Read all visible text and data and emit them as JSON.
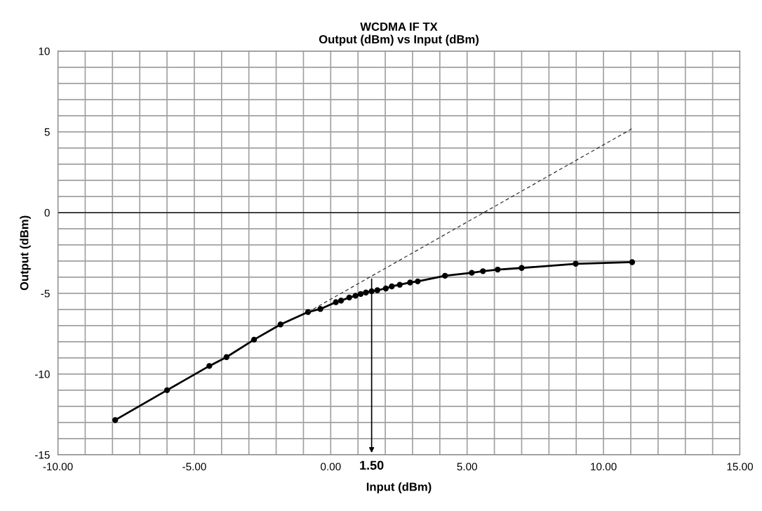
{
  "chart_data": {
    "type": "line",
    "title": "WCDMA IF TX\nOutput (dBm) vs Input (dBm)",
    "xlabel": "Input (dBm)",
    "ylabel": "Output (dBm)",
    "series": [
      {
        "color": "#000000",
        "marker": "circle",
        "line_style": "solid",
        "x": [
          -7.9,
          -6.0,
          -4.45,
          -3.82,
          -2.81,
          -1.84,
          -0.83,
          -0.38,
          0.19,
          0.38,
          0.68,
          0.91,
          1.1,
          1.29,
          1.5,
          1.71,
          2.02,
          2.24,
          2.53,
          2.91,
          3.19,
          4.19,
          5.17,
          5.58,
          6.12,
          7.0,
          8.98,
          11.05
        ],
        "values": [
          -12.85,
          -11.0,
          -9.5,
          -8.95,
          -7.87,
          -6.93,
          -6.16,
          -5.97,
          -5.55,
          -5.45,
          -5.26,
          -5.15,
          -5.04,
          -4.95,
          -4.87,
          -4.81,
          -4.7,
          -4.57,
          -4.47,
          -4.33,
          -4.26,
          -3.91,
          -3.73,
          -3.63,
          -3.53,
          -3.43,
          -3.17,
          -3.07
        ]
      },
      {
        "color": "#333333",
        "marker": "none",
        "line_style": "dashed",
        "x": [
          -0.83,
          11.05
        ],
        "values": [
          -6.16,
          5.2
        ]
      }
    ],
    "annotations": [
      {
        "text": "1.50",
        "x": 1.5,
        "y": -4.0
      }
    ],
    "ref_lines": [
      {
        "axis": "y",
        "value": 0,
        "color": "#000000",
        "line_style": "solid"
      }
    ],
    "xlim": [
      -10,
      15
    ],
    "ylim": [
      -15,
      10
    ],
    "xticks": [
      {
        "value": -10,
        "label": "-10.00"
      },
      {
        "value": -9,
        "label": null
      },
      {
        "value": -8,
        "label": null
      },
      {
        "value": -7,
        "label": null
      },
      {
        "value": -6,
        "label": null
      },
      {
        "value": -5,
        "label": "-5.00"
      },
      {
        "value": -4,
        "label": null
      },
      {
        "value": -3,
        "label": null
      },
      {
        "value": -2,
        "label": null
      },
      {
        "value": -1,
        "label": null
      },
      {
        "value": 0,
        "label": "0.00"
      },
      {
        "value": 1,
        "label": null
      },
      {
        "value": 2,
        "label": null
      },
      {
        "value": 3,
        "label": null
      },
      {
        "value": 4,
        "label": null
      },
      {
        "value": 5,
        "label": "5.00"
      },
      {
        "value": 6,
        "label": null
      },
      {
        "value": 7,
        "label": null
      },
      {
        "value": 8,
        "label": null
      },
      {
        "value": 9,
        "label": null
      },
      {
        "value": 10,
        "label": "10.00"
      },
      {
        "value": 11,
        "label": null
      },
      {
        "value": 12,
        "label": null
      },
      {
        "value": 13,
        "label": null
      },
      {
        "value": 14,
        "label": null
      },
      {
        "value": 15,
        "label": "15.00"
      }
    ],
    "yticks": [
      -15,
      {
        "value": -14,
        "label": null
      },
      {
        "value": -13,
        "label": null
      },
      {
        "value": -12,
        "label": null
      },
      {
        "value": -11,
        "label": null
      },
      -10,
      {
        "value": -9,
        "label": null
      },
      {
        "value": -8,
        "label": null
      },
      {
        "value": -7,
        "label": null
      },
      {
        "value": -6,
        "label": null
      },
      -5,
      {
        "value": -4,
        "label": null
      },
      {
        "value": -3,
        "label": null
      },
      {
        "value": -2,
        "label": null
      },
      {
        "value": -1,
        "label": null
      },
      0,
      {
        "value": 1,
        "label": null
      },
      {
        "value": 2,
        "label": null
      },
      {
        "value": 3,
        "label": null
      },
      {
        "value": 4,
        "label": null
      },
      5,
      {
        "value": 6,
        "label": null
      },
      {
        "value": 7,
        "label": null
      },
      {
        "value": 8,
        "label": null
      },
      {
        "value": 9,
        "label": null
      },
      10
    ],
    "grid": true,
    "legend": false
  }
}
